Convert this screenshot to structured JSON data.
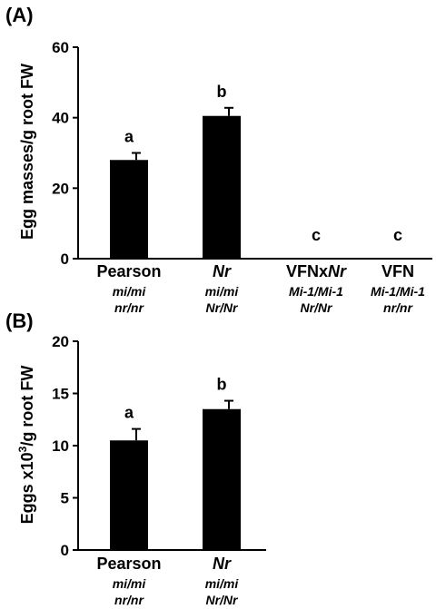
{
  "chart_data": [
    {
      "panel": "(A)",
      "type": "bar",
      "ylabel": "Egg masses/g root FW",
      "ylim": [
        0,
        60
      ],
      "yticks": [
        "0",
        "20",
        "40",
        "60"
      ],
      "categories": [
        {
          "label": "Pearson",
          "italic_label": false,
          "geno1": "mi/mi",
          "geno2": "nr/nr"
        },
        {
          "label": "Nr",
          "italic_label": true,
          "geno1": "mi/mi",
          "geno2": "Nr/Nr"
        },
        {
          "label": "VFNxNr",
          "italic_label": false,
          "geno1": "Mi-1/Mi-1",
          "geno2": "Nr/Nr"
        },
        {
          "label": "VFN",
          "italic_label": false,
          "geno1": "Mi-1/Mi-1",
          "geno2": "nr/nr"
        }
      ],
      "values": [
        28,
        40.5,
        0,
        0
      ],
      "errors": [
        2,
        2.3,
        0,
        0
      ],
      "letters": [
        "a",
        "b",
        "c",
        "c"
      ],
      "color": "#000000"
    },
    {
      "panel": "(B)",
      "type": "bar",
      "ylabel_parts": [
        "Eggs x10",
        "3",
        "/g root FW"
      ],
      "ylim": [
        0,
        20
      ],
      "yticks": [
        "0",
        "5",
        "10",
        "15",
        "20"
      ],
      "categories": [
        {
          "label": "Pearson",
          "italic_label": false,
          "geno1": "mi/mi",
          "geno2": "nr/nr"
        },
        {
          "label": "Nr",
          "italic_label": true,
          "geno1": "mi/mi",
          "geno2": "Nr/Nr"
        }
      ],
      "values": [
        10.5,
        13.5
      ],
      "errors": [
        1.1,
        0.8
      ],
      "letters": [
        "a",
        "b"
      ],
      "color": "#000000"
    }
  ]
}
